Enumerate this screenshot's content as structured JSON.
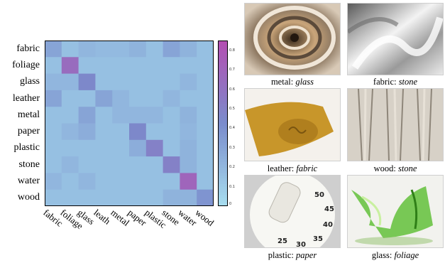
{
  "chart_data": {
    "type": "heatmap",
    "row_labels": [
      "fabric",
      "foliage",
      "glass",
      "leather",
      "metal",
      "paper",
      "plastic",
      "stone",
      "water",
      "wood"
    ],
    "col_labels": [
      "fabric",
      "foliage",
      "glass",
      "leath",
      "metal",
      "paper",
      "plastic",
      "stone",
      "water",
      "wood"
    ],
    "values": [
      [
        0.3,
        0.15,
        0.2,
        0.18,
        0.18,
        0.22,
        0.15,
        0.3,
        0.22,
        0.15
      ],
      [
        0.15,
        0.65,
        0.15,
        0.15,
        0.15,
        0.15,
        0.15,
        0.15,
        0.15,
        0.15
      ],
      [
        0.2,
        0.2,
        0.45,
        0.15,
        0.15,
        0.15,
        0.15,
        0.15,
        0.2,
        0.15
      ],
      [
        0.3,
        0.15,
        0.15,
        0.3,
        0.2,
        0.15,
        0.15,
        0.2,
        0.15,
        0.15
      ],
      [
        0.15,
        0.15,
        0.3,
        0.15,
        0.2,
        0.2,
        0.2,
        0.15,
        0.22,
        0.15
      ],
      [
        0.15,
        0.2,
        0.25,
        0.15,
        0.15,
        0.45,
        0.15,
        0.15,
        0.2,
        0.15
      ],
      [
        0.15,
        0.15,
        0.15,
        0.15,
        0.15,
        0.25,
        0.5,
        0.15,
        0.22,
        0.15
      ],
      [
        0.15,
        0.2,
        0.15,
        0.15,
        0.15,
        0.15,
        0.15,
        0.5,
        0.22,
        0.15
      ],
      [
        0.2,
        0.15,
        0.2,
        0.15,
        0.15,
        0.15,
        0.15,
        0.15,
        0.7,
        0.15
      ],
      [
        0.15,
        0.15,
        0.15,
        0.15,
        0.15,
        0.15,
        0.15,
        0.22,
        0.22,
        0.38
      ]
    ],
    "colorbar_ticks": [
      "0.8",
      "0.7",
      "0.6",
      "0.5",
      "0.4",
      "0.3",
      "0.2",
      "0.1",
      "0"
    ],
    "value_range": [
      0,
      0.85
    ],
    "colors": {
      "low": "#a6dcee",
      "mid": "#7a8ccc",
      "high": "#b34fb2"
    }
  },
  "examples": [
    {
      "label": "metal",
      "prediction": "glass",
      "icon": "spiral-metal-image"
    },
    {
      "label": "fabric",
      "prediction": "stone",
      "icon": "white-fabric-image"
    },
    {
      "label": "leather",
      "prediction": "fabric",
      "icon": "leather-strap-image"
    },
    {
      "label": "wood",
      "prediction": "stone",
      "icon": "weathered-wood-image"
    },
    {
      "label": "plastic",
      "prediction": "paper",
      "icon": "kitchen-timer-image"
    },
    {
      "label": "glass",
      "prediction": "foliage",
      "icon": "green-glass-image"
    }
  ]
}
